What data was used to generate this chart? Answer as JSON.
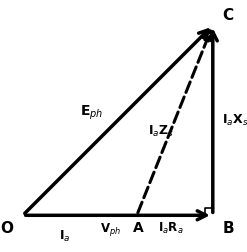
{
  "O": [
    0.0,
    0.0
  ],
  "A": [
    0.6,
    0.0
  ],
  "B": [
    1.0,
    0.0
  ],
  "C": [
    1.0,
    1.0
  ],
  "bg_color": "#ffffff",
  "arrow_color": "#000000",
  "lw_solid": 2.5,
  "lw_dashed": 2.2,
  "label_O": "O",
  "label_B": "B",
  "label_C": "C",
  "label_A": "A",
  "label_Ia": "I$_a$",
  "label_Vph": "V$_{ph}$",
  "label_IaRa": "I$_a$R$_a$",
  "label_Eph": "E$_{ph}$",
  "label_IaZs": "I$_a$Z$_s$",
  "label_IaXs": "I$_a$X$_s$",
  "figsize": [
    2.47,
    2.52
  ],
  "dpi": 100,
  "xlim": [
    -0.12,
    1.18
  ],
  "ylim": [
    -0.18,
    1.12
  ]
}
